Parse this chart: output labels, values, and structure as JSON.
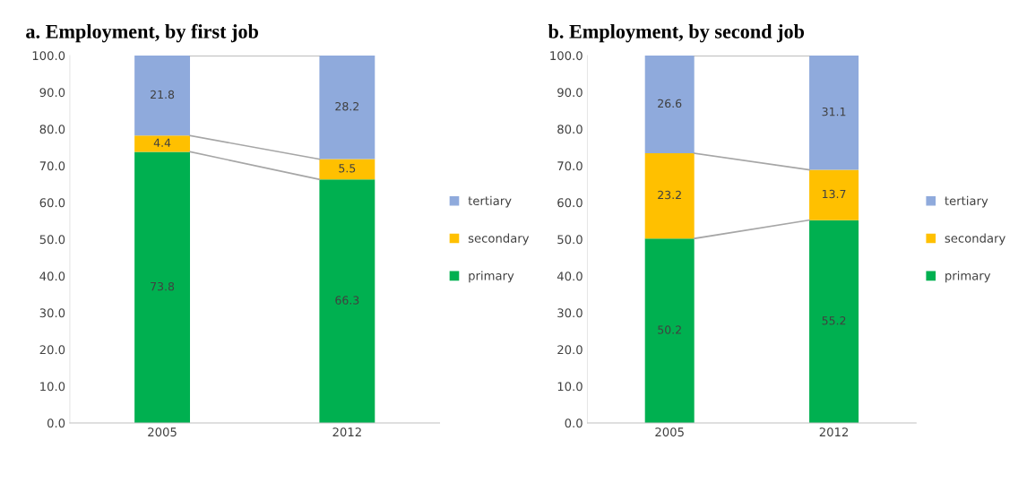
{
  "chart_data": [
    {
      "type": "bar",
      "title": "a. Employment, by first job",
      "categories": [
        "2005",
        "2012"
      ],
      "stacked": true,
      "data_labels": true,
      "legend": "right",
      "grid": false,
      "ylim": [
        0,
        100
      ],
      "yticks": [
        {
          "value": 0,
          "label": "0.0"
        },
        {
          "value": 10,
          "label": "10.0"
        },
        {
          "value": 20,
          "label": "20.0"
        },
        {
          "value": 30,
          "label": "30.0"
        },
        {
          "value": 40,
          "label": "40.0"
        },
        {
          "value": 50,
          "label": "50.0"
        },
        {
          "value": 60,
          "label": "60.0"
        },
        {
          "value": 70,
          "label": "70.0"
        },
        {
          "value": 80,
          "label": "80.0"
        },
        {
          "value": 90,
          "label": "90.0"
        },
        {
          "value": 100,
          "label": "100.0"
        }
      ],
      "series": [
        {
          "name": "primary",
          "color": "#00b050",
          "values": [
            73.8,
            66.3
          ]
        },
        {
          "name": "secondary",
          "color": "#ffc000",
          "values": [
            4.4,
            5.5
          ]
        },
        {
          "name": "tertiary",
          "color": "#8faadc",
          "values": [
            21.8,
            28.2
          ]
        }
      ]
    },
    {
      "type": "bar",
      "title": "b. Employment, by second job",
      "categories": [
        "2005",
        "2012"
      ],
      "stacked": true,
      "data_labels": true,
      "legend": "right",
      "grid": false,
      "ylim": [
        0,
        100
      ],
      "yticks": [
        {
          "value": 0,
          "label": "0.0"
        },
        {
          "value": 10,
          "label": "10.0"
        },
        {
          "value": 20,
          "label": "20.0"
        },
        {
          "value": 30,
          "label": "30.0"
        },
        {
          "value": 40,
          "label": "40.0"
        },
        {
          "value": 50,
          "label": "50.0"
        },
        {
          "value": 60,
          "label": "60.0"
        },
        {
          "value": 70,
          "label": "70.0"
        },
        {
          "value": 80,
          "label": "80.0"
        },
        {
          "value": 90,
          "label": "90.0"
        },
        {
          "value": 100,
          "label": "100.0"
        }
      ],
      "series": [
        {
          "name": "primary",
          "color": "#00b050",
          "values": [
            50.2,
            55.2
          ]
        },
        {
          "name": "secondary",
          "color": "#ffc000",
          "values": [
            23.2,
            13.7
          ]
        },
        {
          "name": "tertiary",
          "color": "#8faadc",
          "values": [
            26.6,
            31.1
          ]
        }
      ]
    }
  ]
}
